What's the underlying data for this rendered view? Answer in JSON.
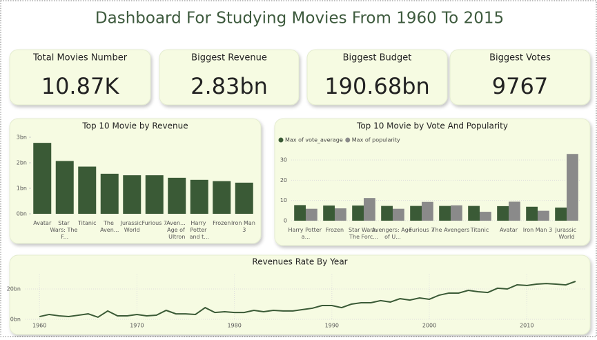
{
  "title": "Dashboard For Studying Movies From 1960 To 2015",
  "cards": [
    {
      "label": "Total Movies Number",
      "value": "10.87K"
    },
    {
      "label": "Biggest Revenue",
      "value": "2.83bn"
    },
    {
      "label": "Biggest Budget",
      "value": "190.68bn"
    },
    {
      "label": "Biggest Votes",
      "value": "9767"
    }
  ],
  "chart_data": [
    {
      "type": "bar",
      "title": "Top 10 Movie by Revenue",
      "categories": [
        "Avatar",
        "Star Wars: The F...",
        "Titanic",
        "The Aven...",
        "Jurassic World",
        "Furious 7",
        "Aven... Age of Ultron",
        "Harry Potter and t...",
        "Frozen",
        "Iron Man 3"
      ],
      "values": [
        2.78,
        2.07,
        1.85,
        1.57,
        1.51,
        1.51,
        1.41,
        1.33,
        1.28,
        1.22
      ],
      "color": "#3a5a36",
      "ylim": [
        0,
        3
      ],
      "yticks": [
        {
          "value": 0,
          "label": "0bn"
        },
        {
          "value": 1,
          "label": "1bn"
        },
        {
          "value": 2,
          "label": "2bn"
        },
        {
          "value": 3,
          "label": "3bn"
        }
      ]
    },
    {
      "type": "grouped-bar",
      "title": "Top 10 Movie by Vote And Popularity",
      "categories": [
        "Harry Potter a...",
        "Frozen",
        "Star Wars: The Forc...",
        "Avengers: Age of U...",
        "Furious 7",
        "The Avengers",
        "Titanic",
        "Avatar",
        "Iron Man 3",
        "Jurassic World"
      ],
      "series": [
        {
          "name": "Max of vote_average",
          "color": "#3a5a36",
          "values": [
            7.7,
            7.5,
            7.5,
            7.3,
            7.3,
            7.3,
            7.3,
            7.2,
            6.9,
            6.5
          ]
        },
        {
          "name": "Max of popularity",
          "color": "#8a8a8a",
          "values": [
            5.9,
            6.1,
            11.2,
            5.9,
            9.3,
            7.6,
            4.4,
            9.4,
            4.9,
            33.0
          ]
        }
      ],
      "legend": "top-left",
      "ylim": [
        0,
        34
      ],
      "yticks": [
        0,
        10,
        20,
        30
      ],
      "grid": true
    },
    {
      "type": "line",
      "title": "Revenues Rate By Year",
      "x": [
        1960,
        1961,
        1962,
        1963,
        1964,
        1965,
        1966,
        1967,
        1968,
        1969,
        1970,
        1971,
        1972,
        1973,
        1974,
        1975,
        1976,
        1977,
        1978,
        1979,
        1980,
        1981,
        1982,
        1983,
        1984,
        1985,
        1986,
        1987,
        1988,
        1989,
        1990,
        1991,
        1992,
        1993,
        1994,
        1995,
        1996,
        1997,
        1998,
        1999,
        2000,
        2001,
        2002,
        2003,
        2004,
        2005,
        2006,
        2007,
        2008,
        2009,
        2010,
        2011,
        2012,
        2013,
        2014,
        2015
      ],
      "values": [
        1.8,
        3.2,
        2.3,
        1.8,
        2.7,
        3.6,
        1.4,
        5.5,
        2.3,
        2.3,
        3.2,
        2.3,
        2.7,
        5.9,
        3.6,
        3.6,
        3.2,
        7.7,
        4.5,
        5.0,
        4.5,
        4.5,
        5.9,
        5.0,
        5.9,
        5.5,
        5.5,
        6.4,
        7.3,
        9.1,
        9.1,
        7.7,
        10.0,
        10.9,
        10.9,
        12.3,
        11.4,
        13.6,
        12.7,
        14.1,
        13.2,
        15.9,
        17.3,
        17.3,
        19.1,
        18.2,
        17.7,
        20.5,
        20.0,
        22.7,
        22.3,
        23.2,
        23.6,
        23.2,
        22.7,
        25.0
      ],
      "color": "#3a5a36",
      "xlim": [
        1958.5,
        2016
      ],
      "xticks": [
        1960,
        1970,
        1980,
        1990,
        2000,
        2010
      ],
      "ylim": [
        0,
        25
      ],
      "yticks": [
        {
          "value": 0,
          "label": "0bn"
        },
        {
          "value": 20,
          "label": "20bn"
        }
      ],
      "grid": true
    }
  ]
}
